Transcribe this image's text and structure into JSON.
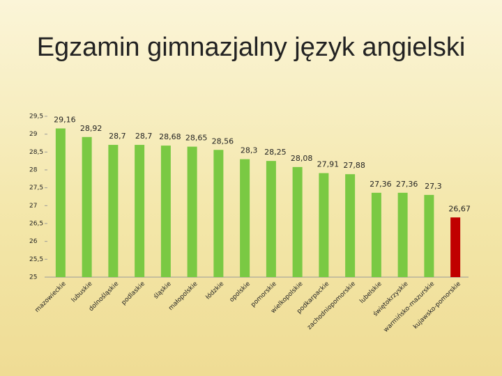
{
  "chart_data": {
    "type": "bar",
    "title": "Egzamin gimnazjalny język angielski",
    "categories": [
      "mazowieckie",
      "lubuskie",
      "dolnośląskie",
      "podlaskie",
      "śląskie",
      "małopolskie",
      "łódzkie",
      "opolskie",
      "pomorskie",
      "wielkopolskie",
      "podkarpackie",
      "zachodniopomorskie",
      "lubelskie",
      "świętokrzyskie",
      "warmińsko-mazurskie",
      "kujawsko-pomorskie"
    ],
    "values": [
      29.16,
      28.92,
      28.7,
      28.7,
      28.68,
      28.65,
      28.56,
      28.3,
      28.25,
      28.08,
      27.91,
      27.88,
      27.36,
      27.36,
      27.3,
      26.67
    ],
    "value_labels": [
      "29,16",
      "28,92",
      "28,7",
      "28,7",
      "28,68",
      "28,65",
      "28,56",
      "28,3",
      "28,25",
      "28,08",
      "27,91",
      "27,88",
      "27,36",
      "27,36",
      "27,3",
      "26,67"
    ],
    "colors": [
      "#7ac943",
      "#7ac943",
      "#7ac943",
      "#7ac943",
      "#7ac943",
      "#7ac943",
      "#7ac943",
      "#7ac943",
      "#7ac943",
      "#7ac943",
      "#7ac943",
      "#7ac943",
      "#7ac943",
      "#7ac943",
      "#7ac943",
      "#c00000"
    ],
    "ylim": [
      25,
      29.5
    ],
    "yticks": [
      25,
      {
        "value": 25.5,
        "label": "25,5"
      },
      26,
      {
        "value": 26.5,
        "label": "26,5"
      },
      27,
      {
        "value": 27.5,
        "label": "27,5"
      },
      28,
      {
        "value": 28.5,
        "label": "28,5"
      },
      29,
      {
        "value": 29.5,
        "label": "29,5"
      }
    ],
    "grid": false
  }
}
